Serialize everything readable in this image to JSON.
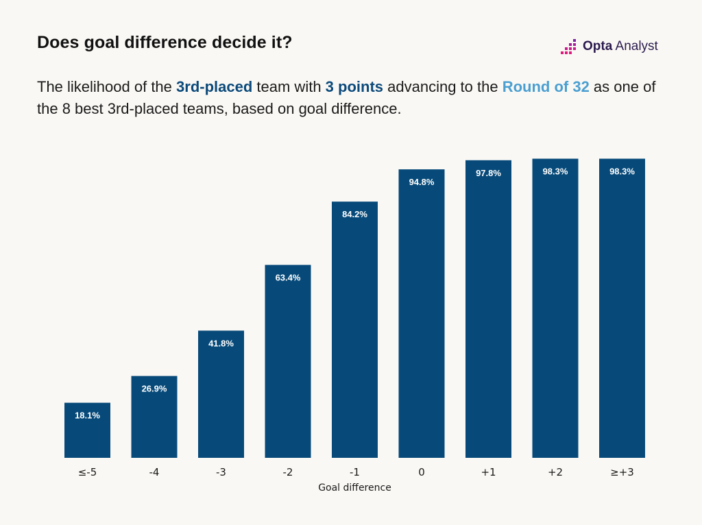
{
  "header": {
    "title": "Does goal difference decide it?",
    "subtitle_parts": [
      {
        "text": "The likelihood of the ",
        "style": "plain"
      },
      {
        "text": "3rd-placed",
        "style": "dark"
      },
      {
        "text": " team with ",
        "style": "plain"
      },
      {
        "text": "3 points",
        "style": "dark"
      },
      {
        "text": " advancing to the ",
        "style": "plain"
      },
      {
        "text": "Round of 32",
        "style": "light"
      },
      {
        "text": " as one of the 8 best 3rd-placed teams, based on goal difference.",
        "style": "plain"
      }
    ]
  },
  "logo": {
    "brand_bold": "Opta",
    "brand_light": "Analyst",
    "icon": "opta-dots-icon"
  },
  "colors": {
    "bar": "#074a7a",
    "highlight_dark": "#0b4a7b",
    "highlight_light": "#4a9fd1",
    "background": "#faf8f4"
  },
  "chart_data": {
    "type": "bar",
    "categories": [
      "≤-5",
      "-4",
      "-3",
      "-2",
      "-1",
      "0",
      "+1",
      "+2",
      "≥+3"
    ],
    "values": [
      18.1,
      26.9,
      41.8,
      63.4,
      84.2,
      94.8,
      97.8,
      98.3,
      98.3
    ],
    "value_labels": [
      "18.1%",
      "26.9%",
      "41.8%",
      "63.4%",
      "84.2%",
      "94.8%",
      "97.8%",
      "98.3%",
      "98.3%"
    ],
    "xlabel": "Goal difference",
    "ylabel": "",
    "ylim": [
      0,
      100
    ],
    "grid": false,
    "legend": "none"
  }
}
